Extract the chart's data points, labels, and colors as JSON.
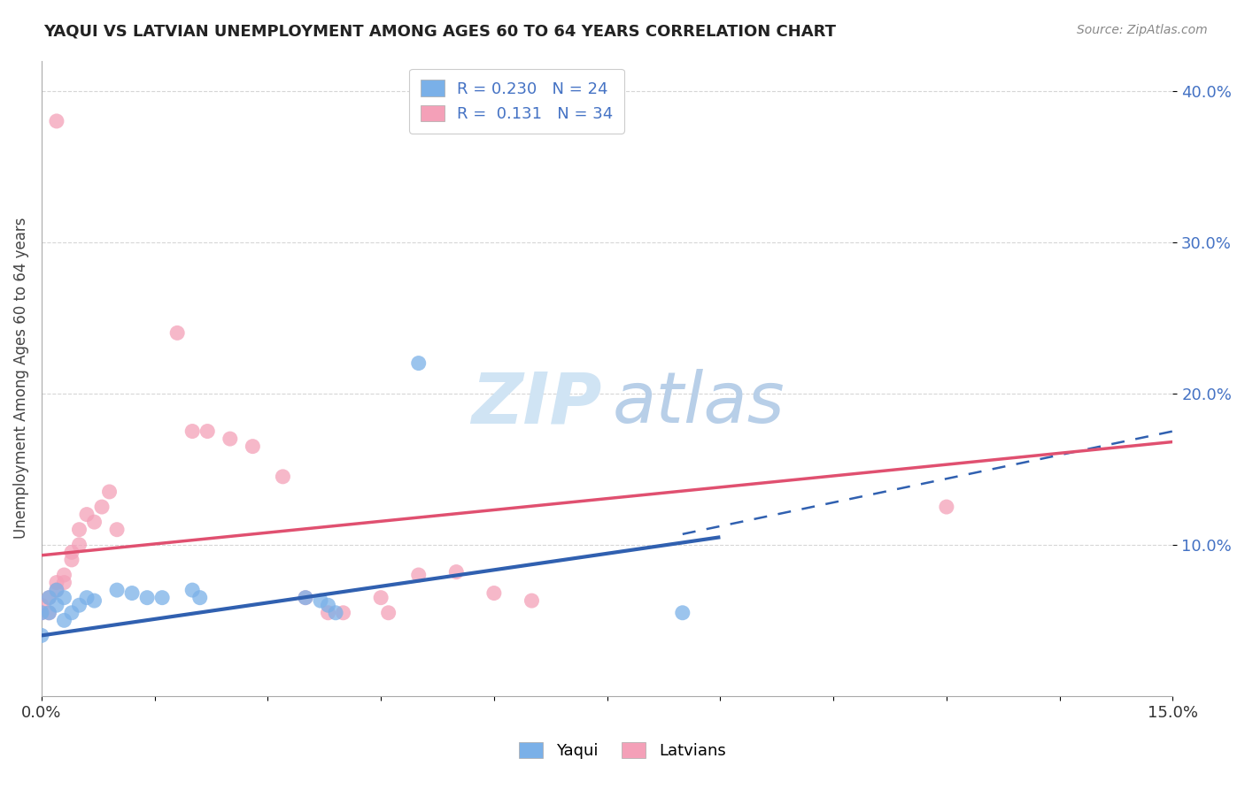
{
  "title": "YAQUI VS LATVIAN UNEMPLOYMENT AMONG AGES 60 TO 64 YEARS CORRELATION CHART",
  "source": "Source: ZipAtlas.com",
  "ylabel": "Unemployment Among Ages 60 to 64 years",
  "xlim": [
    0.0,
    0.15
  ],
  "ylim": [
    0.0,
    0.42
  ],
  "ytick_labels": [
    "10.0%",
    "20.0%",
    "30.0%",
    "40.0%"
  ],
  "ytick_vals": [
    0.1,
    0.2,
    0.3,
    0.4
  ],
  "legend_items": [
    {
      "label": "R = 0.230   N = 24",
      "color": "#8ab4e8"
    },
    {
      "label": "R =  0.131   N = 34",
      "color": "#f4a7b9"
    }
  ],
  "yaqui_color": "#7ab0e8",
  "latvian_color": "#f4a0b8",
  "yaqui_line_color": "#3060b0",
  "latvian_line_color": "#e05070",
  "yaqui_points": [
    [
      0.0,
      0.055
    ],
    [
      0.0,
      0.04
    ],
    [
      0.001,
      0.065
    ],
    [
      0.001,
      0.055
    ],
    [
      0.002,
      0.07
    ],
    [
      0.002,
      0.06
    ],
    [
      0.003,
      0.065
    ],
    [
      0.003,
      0.05
    ],
    [
      0.004,
      0.055
    ],
    [
      0.005,
      0.06
    ],
    [
      0.006,
      0.065
    ],
    [
      0.007,
      0.063
    ],
    [
      0.01,
      0.07
    ],
    [
      0.012,
      0.068
    ],
    [
      0.014,
      0.065
    ],
    [
      0.016,
      0.065
    ],
    [
      0.02,
      0.07
    ],
    [
      0.021,
      0.065
    ],
    [
      0.035,
      0.065
    ],
    [
      0.037,
      0.063
    ],
    [
      0.038,
      0.06
    ],
    [
      0.039,
      0.055
    ],
    [
      0.05,
      0.22
    ],
    [
      0.085,
      0.055
    ]
  ],
  "latvian_points": [
    [
      0.0,
      0.055
    ],
    [
      0.0,
      0.06
    ],
    [
      0.001,
      0.055
    ],
    [
      0.001,
      0.065
    ],
    [
      0.002,
      0.075
    ],
    [
      0.002,
      0.07
    ],
    [
      0.003,
      0.075
    ],
    [
      0.003,
      0.08
    ],
    [
      0.004,
      0.09
    ],
    [
      0.004,
      0.095
    ],
    [
      0.005,
      0.1
    ],
    [
      0.005,
      0.11
    ],
    [
      0.006,
      0.12
    ],
    [
      0.007,
      0.115
    ],
    [
      0.008,
      0.125
    ],
    [
      0.009,
      0.135
    ],
    [
      0.01,
      0.11
    ],
    [
      0.018,
      0.24
    ],
    [
      0.02,
      0.175
    ],
    [
      0.022,
      0.175
    ],
    [
      0.025,
      0.17
    ],
    [
      0.028,
      0.165
    ],
    [
      0.032,
      0.145
    ],
    [
      0.035,
      0.065
    ],
    [
      0.038,
      0.055
    ],
    [
      0.04,
      0.055
    ],
    [
      0.045,
      0.065
    ],
    [
      0.046,
      0.055
    ],
    [
      0.05,
      0.08
    ],
    [
      0.055,
      0.082
    ],
    [
      0.06,
      0.068
    ],
    [
      0.065,
      0.063
    ],
    [
      0.12,
      0.125
    ],
    [
      0.002,
      0.38
    ]
  ],
  "yaqui_line": {
    "x0": 0.0,
    "y0": 0.04,
    "x1": 0.09,
    "y1": 0.105
  },
  "latvian_line": {
    "x0": 0.0,
    "y0": 0.093,
    "x1": 0.15,
    "y1": 0.168
  },
  "dash_line": {
    "x0": 0.085,
    "y0": 0.107,
    "x1": 0.15,
    "y1": 0.175
  }
}
